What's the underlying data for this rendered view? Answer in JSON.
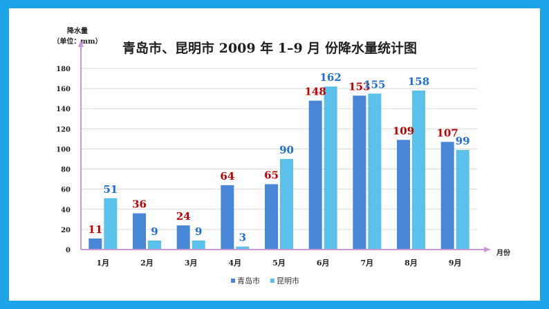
{
  "colors": {
    "border": "#1ba5e8",
    "series1": "#4a86d8",
    "series2": "#5bc1ea",
    "label1": "#c00000",
    "label2": "#1f6ed4",
    "axis": "#c79ad6",
    "grid": "#d9d9d9"
  },
  "chart_data": {
    "type": "bar",
    "title": "青岛市、昆明市 2009 年 1–9 月 份降水量统计图",
    "ylabel_line1": "降水量",
    "ylabel_line2": "（单位：mm）",
    "xlabel": "月份",
    "ylim": [
      0,
      180
    ],
    "yticks": [
      0,
      20,
      40,
      60,
      80,
      100,
      120,
      140,
      160,
      180
    ],
    "grid": true,
    "legend_position": "bottom",
    "categories": [
      "1月",
      "2月",
      "3月",
      "4月",
      "5月",
      "6月",
      "7月",
      "8月",
      "9月"
    ],
    "series": [
      {
        "name": "青岛市",
        "values": [
          11,
          36,
          24,
          64,
          65,
          148,
          153,
          109,
          107
        ]
      },
      {
        "name": "昆明市",
        "values": [
          51,
          9,
          9,
          3,
          90,
          162,
          155,
          158,
          99
        ]
      }
    ]
  }
}
